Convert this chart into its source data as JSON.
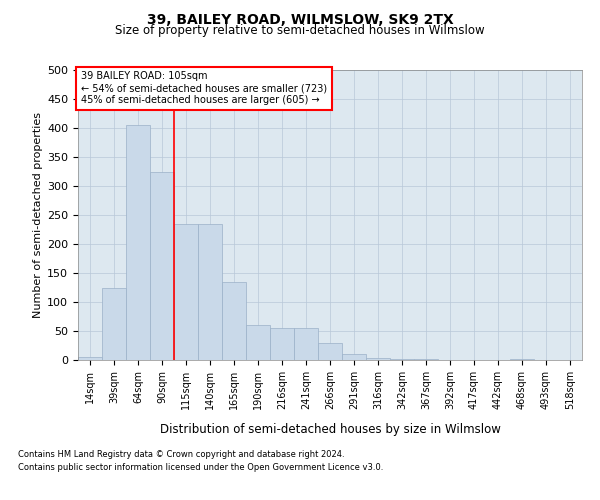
{
  "title1": "39, BAILEY ROAD, WILMSLOW, SK9 2TX",
  "title2": "Size of property relative to semi-detached houses in Wilmslow",
  "xlabel": "Distribution of semi-detached houses by size in Wilmslow",
  "ylabel": "Number of semi-detached properties",
  "categories": [
    "14sqm",
    "39sqm",
    "64sqm",
    "90sqm",
    "115sqm",
    "140sqm",
    "165sqm",
    "190sqm",
    "216sqm",
    "241sqm",
    "266sqm",
    "291sqm",
    "316sqm",
    "342sqm",
    "367sqm",
    "392sqm",
    "417sqm",
    "442sqm",
    "468sqm",
    "493sqm",
    "518sqm"
  ],
  "values": [
    5,
    125,
    405,
    325,
    235,
    235,
    135,
    60,
    55,
    55,
    30,
    10,
    3,
    1,
    1,
    0,
    0,
    0,
    1,
    0,
    0
  ],
  "bar_color": "#c9d9e9",
  "bar_edge_color": "#9ab0c8",
  "grid_color": "#b8c8d8",
  "background_color": "#dde8f0",
  "vline_x_index": 3.5,
  "vline_color": "red",
  "annotation_text": "39 BAILEY ROAD: 105sqm\n← 54% of semi-detached houses are smaller (723)\n45% of semi-detached houses are larger (605) →",
  "annotation_box_color": "white",
  "annotation_box_edge": "red",
  "footer1": "Contains HM Land Registry data © Crown copyright and database right 2024.",
  "footer2": "Contains public sector information licensed under the Open Government Licence v3.0.",
  "ylim": [
    0,
    500
  ],
  "yticks": [
    0,
    50,
    100,
    150,
    200,
    250,
    300,
    350,
    400,
    450,
    500
  ]
}
